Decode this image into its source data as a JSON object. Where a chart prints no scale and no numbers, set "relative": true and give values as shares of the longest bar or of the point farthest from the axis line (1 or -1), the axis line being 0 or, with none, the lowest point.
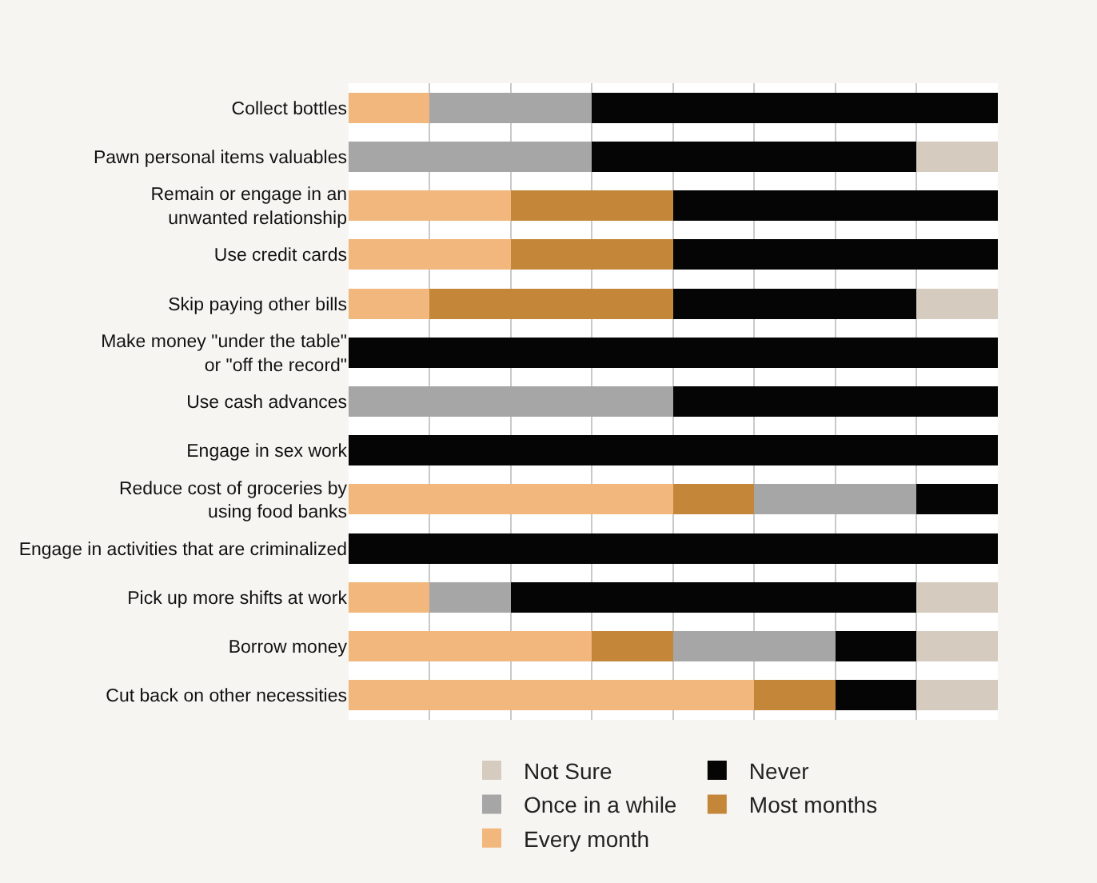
{
  "chart_data": {
    "type": "bar",
    "orientation": "horizontal",
    "stacked": true,
    "relative": true,
    "grid": "x",
    "legend": "bottom",
    "categories": [
      "Collect bottles",
      "Pawn personal items valuables",
      "Remain or engage in an\nunwanted relationship",
      "Use credit cards",
      "Skip paying other bills",
      "Make money \"under the table\"\nor \"off the record\"",
      "Use cash advances",
      "Engage in sex work",
      "Reduce cost of groceries by\nusing food banks",
      "Engage in activities that are criminalized",
      "Pick up more shifts at work",
      "Borrow money",
      "Cut back on other necessities"
    ],
    "series": [
      {
        "name": "Every month",
        "color": "#f2b77c",
        "values": [
          0.125,
          0,
          0.25,
          0.25,
          0.125,
          0,
          0,
          0,
          0.5,
          0,
          0.125,
          0.375,
          0.625
        ]
      },
      {
        "name": "Most months",
        "color": "#c4873a",
        "values": [
          0,
          0,
          0.25,
          0.25,
          0.375,
          0,
          0,
          0,
          0.125,
          0,
          0,
          0.125,
          0.125
        ]
      },
      {
        "name": "Once in a while",
        "color": "#a6a6a6",
        "values": [
          0.25,
          0.375,
          0,
          0,
          0,
          0,
          0.5,
          0,
          0.25,
          0,
          0.125,
          0.25,
          0
        ]
      },
      {
        "name": "Never",
        "color": "#050505",
        "values": [
          0.625,
          0.5,
          0.5,
          0.5,
          0.375,
          1,
          0.5,
          1,
          0.125,
          1,
          0.625,
          0.125,
          0.125
        ]
      },
      {
        "name": "Not Sure",
        "color": "#d6cbbf",
        "values": [
          0,
          0.125,
          0,
          0,
          0.125,
          0,
          0,
          0,
          0,
          0,
          0.125,
          0.125,
          0.125
        ]
      }
    ]
  }
}
